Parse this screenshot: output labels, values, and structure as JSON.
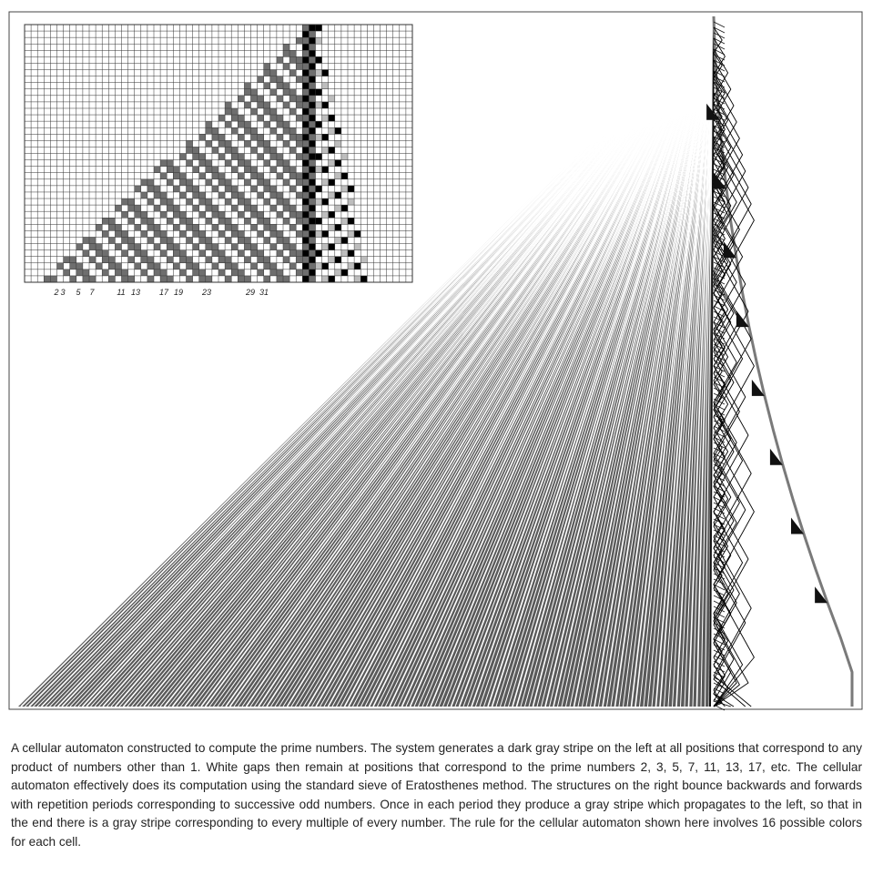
{
  "figure": {
    "inset_prime_labels": [
      "2",
      "3",
      "5",
      "7",
      "11",
      "13",
      "17",
      "19",
      "23",
      "29",
      "31"
    ],
    "colors": {
      "frame": "#444444",
      "stripe": "#5a5a5a",
      "grid_line": "#333333",
      "grid_background": "#ffffff",
      "dark_cell": "#000000",
      "gray_cell": "#6e6e6e",
      "light_cell": "#bdbdbd"
    }
  },
  "caption": {
    "text": "A cellular automaton constructed to compute the prime numbers. The system generates a dark gray stripe on the left at all positions that correspond to any product of numbers other than 1. White gaps then remain at positions that correspond to the prime numbers 2, 3, 5, 7, 11, 13, 17, etc. The cellular automaton effectively does its computation using the standard sieve of Eratosthenes method. The structures on the right bounce backwards and forwards with repetition periods corresponding to successive odd numbers. Once in each period they produce a gray stripe which propagates to the left, so that in the end there is a gray stripe corresponding to every multiple of every number. The rule for the cellular automaton shown here involves 16 possible colors for each cell."
  }
}
